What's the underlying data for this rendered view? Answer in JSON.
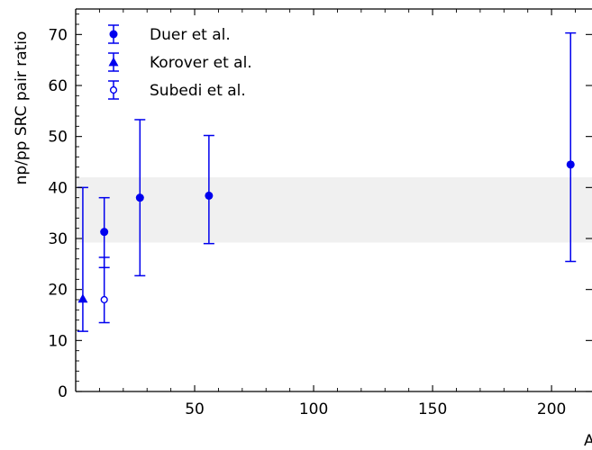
{
  "chart_data": {
    "type": "scatter",
    "title": "",
    "xlabel": "A",
    "ylabel": "np/pp SRC pair ratio",
    "xlim": [
      0,
      217
    ],
    "ylim": [
      0,
      75
    ],
    "x_ticks": [
      50,
      100,
      150,
      200
    ],
    "y_ticks": [
      0,
      10,
      20,
      30,
      40,
      50,
      60,
      70
    ],
    "grid": false,
    "legend_position": "top-left",
    "band": {
      "y_low": 29.2,
      "y_high": 42.0,
      "color": "#f0f0f0"
    },
    "series": [
      {
        "name": "Duer et al.",
        "marker": "filled-circle",
        "color": "#0000ee",
        "points": [
          {
            "x": 12,
            "y": 31.3,
            "y_low": 24.3,
            "y_high": 38.0
          },
          {
            "x": 27,
            "y": 38.0,
            "y_low": 22.7,
            "y_high": 53.3
          },
          {
            "x": 56,
            "y": 38.4,
            "y_low": 29.0,
            "y_high": 50.2
          },
          {
            "x": 208,
            "y": 44.5,
            "y_low": 25.5,
            "y_high": 70.3
          }
        ]
      },
      {
        "name": "Korover et al.",
        "marker": "filled-triangle",
        "color": "#0000ee",
        "points": [
          {
            "x": 3,
            "y": 18.2,
            "y_low": 11.8,
            "y_high": 40.0
          }
        ]
      },
      {
        "name": "Subedi et al.",
        "marker": "open-circle",
        "color": "#0000ee",
        "points": [
          {
            "x": 12,
            "y": 18.0,
            "y_low": 13.5,
            "y_high": 26.3
          }
        ]
      }
    ]
  }
}
